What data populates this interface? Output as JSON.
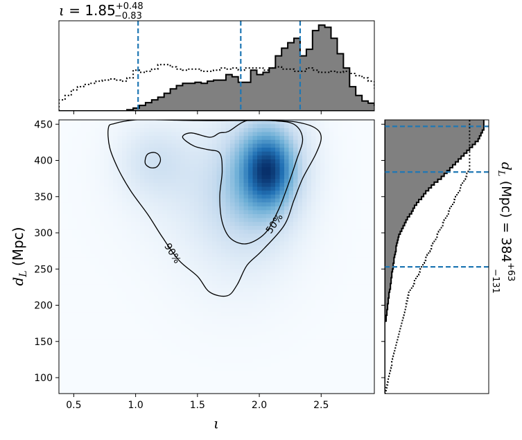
{
  "chart_data": [
    {
      "type": "heatmap",
      "panel": "joint",
      "xlabel": "ι",
      "ylabel": "d_L (Mpc)",
      "xlim": [
        0.38,
        2.93
      ],
      "ylim": [
        78,
        456
      ],
      "xticks": [
        0.5,
        1.0,
        1.5,
        2.0,
        2.5
      ],
      "xticklabels": [
        "0.5",
        "1.0",
        "1.5",
        "2.0",
        "2.5"
      ],
      "yticks": [
        100,
        150,
        200,
        250,
        300,
        350,
        400,
        450
      ],
      "yticklabels": [
        "100",
        "150",
        "200",
        "250",
        "300",
        "350",
        "400",
        "450"
      ],
      "colormap": "Blues",
      "density_peaks": [
        {
          "x": 2.07,
          "y": 385,
          "weight": 1.0,
          "sx": 0.13,
          "sy": 32
        },
        {
          "x": 2.05,
          "y": 405,
          "weight": 0.55,
          "sx": 0.22,
          "sy": 45
        },
        {
          "x": 1.95,
          "y": 345,
          "weight": 0.35,
          "sx": 0.25,
          "sy": 50
        },
        {
          "x": 1.15,
          "y": 400,
          "weight": 0.22,
          "sx": 0.2,
          "sy": 35
        },
        {
          "x": 1.55,
          "y": 370,
          "weight": 0.15,
          "sx": 0.4,
          "sy": 60
        },
        {
          "x": 1.8,
          "y": 270,
          "weight": 0.08,
          "sx": 0.35,
          "sy": 60
        }
      ],
      "contours": [
        {
          "label": "90%",
          "label_at": {
            "x": 1.3,
            "y": 272
          },
          "label_rotation": 58,
          "closed": true,
          "points": [
            [
              0.78,
              445
            ],
            [
              0.83,
              451
            ],
            [
              1.0,
              456
            ],
            [
              1.2,
              456
            ],
            [
              1.5,
              455
            ],
            [
              1.8,
              455
            ],
            [
              2.1,
              455
            ],
            [
              2.3,
              453
            ],
            [
              2.45,
              445
            ],
            [
              2.5,
              432
            ],
            [
              2.46,
              410
            ],
            [
              2.35,
              375
            ],
            [
              2.28,
              345
            ],
            [
              2.2,
              310
            ],
            [
              2.02,
              275
            ],
            [
              1.9,
              255
            ],
            [
              1.82,
              228
            ],
            [
              1.74,
              213
            ],
            [
              1.6,
              218
            ],
            [
              1.5,
              240
            ],
            [
              1.35,
              262
            ],
            [
              1.22,
              293
            ],
            [
              1.1,
              325
            ],
            [
              0.96,
              358
            ],
            [
              0.86,
              388
            ],
            [
              0.79,
              418
            ]
          ]
        },
        {
          "label": "50%",
          "label_at": {
            "x": 2.12,
            "y": 313
          },
          "label_rotation": -55,
          "closed": true,
          "points": [
            [
              1.75,
              440
            ],
            [
              1.9,
              455
            ],
            [
              2.1,
              455
            ],
            [
              2.28,
              450
            ],
            [
              2.35,
              430
            ],
            [
              2.3,
              400
            ],
            [
              2.22,
              360
            ],
            [
              2.15,
              330
            ],
            [
              2.05,
              300
            ],
            [
              1.9,
              285
            ],
            [
              1.77,
              292
            ],
            [
              1.7,
              315
            ],
            [
              1.68,
              350
            ],
            [
              1.7,
              385
            ],
            [
              1.68,
              410
            ],
            [
              1.58,
              415
            ],
            [
              1.47,
              420
            ],
            [
              1.38,
              432
            ],
            [
              1.45,
              438
            ],
            [
              1.6,
              432
            ],
            [
              1.68,
              438
            ]
          ]
        },
        {
          "label": "",
          "closed": true,
          "points": [
            [
              1.1,
              409
            ],
            [
              1.15,
              411
            ],
            [
              1.19,
              407
            ],
            [
              1.2,
              399
            ],
            [
              1.17,
              391
            ],
            [
              1.12,
              390
            ],
            [
              1.08,
              395
            ],
            [
              1.08,
              403
            ]
          ]
        }
      ]
    },
    {
      "type": "step",
      "panel": "top-marginal",
      "variable": "ι",
      "title": "ι = 1.85+0.48−0.83",
      "median": 1.85,
      "upper_error": 0.48,
      "lower_error": 0.83,
      "lines": [
        1.02,
        1.85,
        2.33
      ],
      "edges_start": 0.38,
      "bin_width": 0.05,
      "posterior_counts": [
        0,
        0,
        0,
        0,
        0,
        0,
        0,
        0,
        0,
        0,
        0,
        2,
        5,
        10,
        15,
        20,
        25,
        32,
        40,
        46,
        50,
        50,
        52,
        50,
        54,
        56,
        56,
        66,
        62,
        52,
        52,
        74,
        66,
        70,
        78,
        100,
        114,
        124,
        132,
        100,
        112,
        146,
        156,
        152,
        132,
        104,
        78,
        44,
        28,
        18,
        14,
        10,
        10,
        6,
        2,
        0
      ],
      "prior_counts": [
        20,
        28,
        38,
        44,
        48,
        50,
        54,
        56,
        58,
        56,
        54,
        60,
        74,
        70,
        72,
        76,
        84,
        84,
        80,
        76,
        74,
        76,
        76,
        72,
        72,
        74,
        78,
        76,
        78,
        74,
        78,
        78,
        78,
        74,
        78,
        80,
        76,
        76,
        72,
        72,
        78,
        74,
        70,
        70,
        72,
        70,
        72,
        68,
        64,
        60,
        54,
        42,
        38,
        30,
        24,
        18
      ]
    },
    {
      "type": "step",
      "panel": "right-marginal",
      "variable": "d_L (Mpc)",
      "label": "d_L (Mpc) = 384+63−131",
      "median": 384,
      "upper_error": 63,
      "lower_error": 131,
      "lines": [
        253,
        384,
        447
      ],
      "edges_start": 78,
      "bin_width": 4,
      "posterior_counts": [
        0,
        0,
        0,
        0,
        0,
        0,
        0,
        0,
        0,
        0,
        0,
        0,
        0,
        0,
        0,
        0,
        0,
        0,
        0,
        0,
        0,
        0,
        0,
        0,
        0,
        2,
        2,
        3,
        3,
        4,
        4,
        5,
        5,
        6,
        6,
        7,
        8,
        8,
        9,
        9,
        10,
        10,
        11,
        12,
        12,
        13,
        13,
        14,
        15,
        16,
        16,
        17,
        18,
        19,
        20,
        22,
        24,
        26,
        28,
        30,
        32,
        35,
        38,
        40,
        42,
        45,
        48,
        52,
        55,
        58,
        62,
        66,
        70,
        75,
        80,
        84,
        88,
        92,
        96,
        100,
        104,
        108,
        112,
        116,
        120,
        124,
        128,
        132,
        134,
        136,
        138,
        140,
        140,
        140,
        140
      ],
      "prior_counts": [
        1,
        2,
        3,
        4,
        5,
        6,
        7,
        8,
        9,
        10,
        10,
        11,
        12,
        13,
        14,
        15,
        16,
        17,
        18,
        19,
        20,
        21,
        22,
        23,
        24,
        25,
        26,
        27,
        28,
        29,
        30,
        31,
        32,
        33,
        34,
        36,
        38,
        40,
        42,
        44,
        46,
        48,
        50,
        52,
        54,
        56,
        58,
        60,
        62,
        64,
        66,
        68,
        70,
        72,
        74,
        76,
        78,
        80,
        82,
        84,
        86,
        88,
        90,
        92,
        94,
        96,
        98,
        100,
        102,
        104,
        106,
        108,
        110,
        112,
        114,
        116,
        118,
        120,
        120,
        120,
        120,
        120,
        120,
        120,
        120,
        120,
        120,
        120,
        120,
        120,
        120,
        120,
        120,
        120,
        120
      ]
    }
  ],
  "colors": {
    "posterior_fill": "#808080",
    "outline": "#000000",
    "quantile_line": "#1f77b4",
    "heat_low": "#f7fbff",
    "heat_high": "#08306b"
  }
}
